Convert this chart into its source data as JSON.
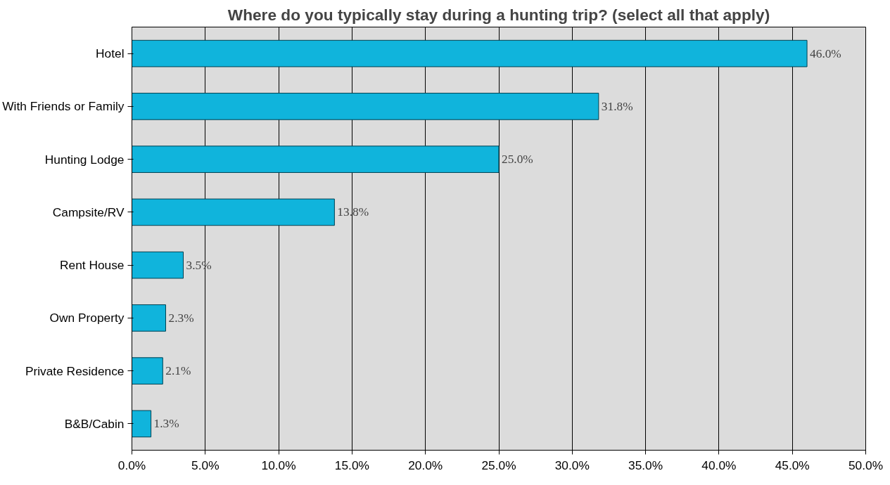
{
  "chart_data": {
    "type": "bar",
    "orientation": "horizontal",
    "title": "Where do you typically stay during a hunting trip? (select all that apply)",
    "categories": [
      "Hotel",
      "With Friends or Family",
      "Hunting Lodge",
      "Campsite/RV",
      "Rent House",
      "Own Property",
      "Private Residence",
      "B&B/Cabin"
    ],
    "values": [
      46.0,
      31.8,
      25.0,
      13.8,
      3.5,
      2.3,
      2.1,
      1.3
    ],
    "color": "#10b4dc",
    "value_labels": [
      "46.0%",
      "31.8%",
      "25.0%",
      "13.8%",
      "3.5%",
      "2.3%",
      "2.1%",
      "1.3%"
    ],
    "xlim": [
      0,
      50
    ],
    "xticks": [
      {
        "value": 0,
        "label": "0.0%"
      },
      {
        "value": 5,
        "label": "5.0%"
      },
      {
        "value": 10,
        "label": "10.0%"
      },
      {
        "value": 15,
        "label": "15.0%"
      },
      {
        "value": 20,
        "label": "20.0%"
      },
      {
        "value": 25,
        "label": "25.0%"
      },
      {
        "value": 30,
        "label": "30.0%"
      },
      {
        "value": 35,
        "label": "35.0%"
      },
      {
        "value": 40,
        "label": "40.0%"
      },
      {
        "value": 45,
        "label": "45.0%"
      },
      {
        "value": 50,
        "label": "50.0%"
      }
    ],
    "grid": "x"
  }
}
